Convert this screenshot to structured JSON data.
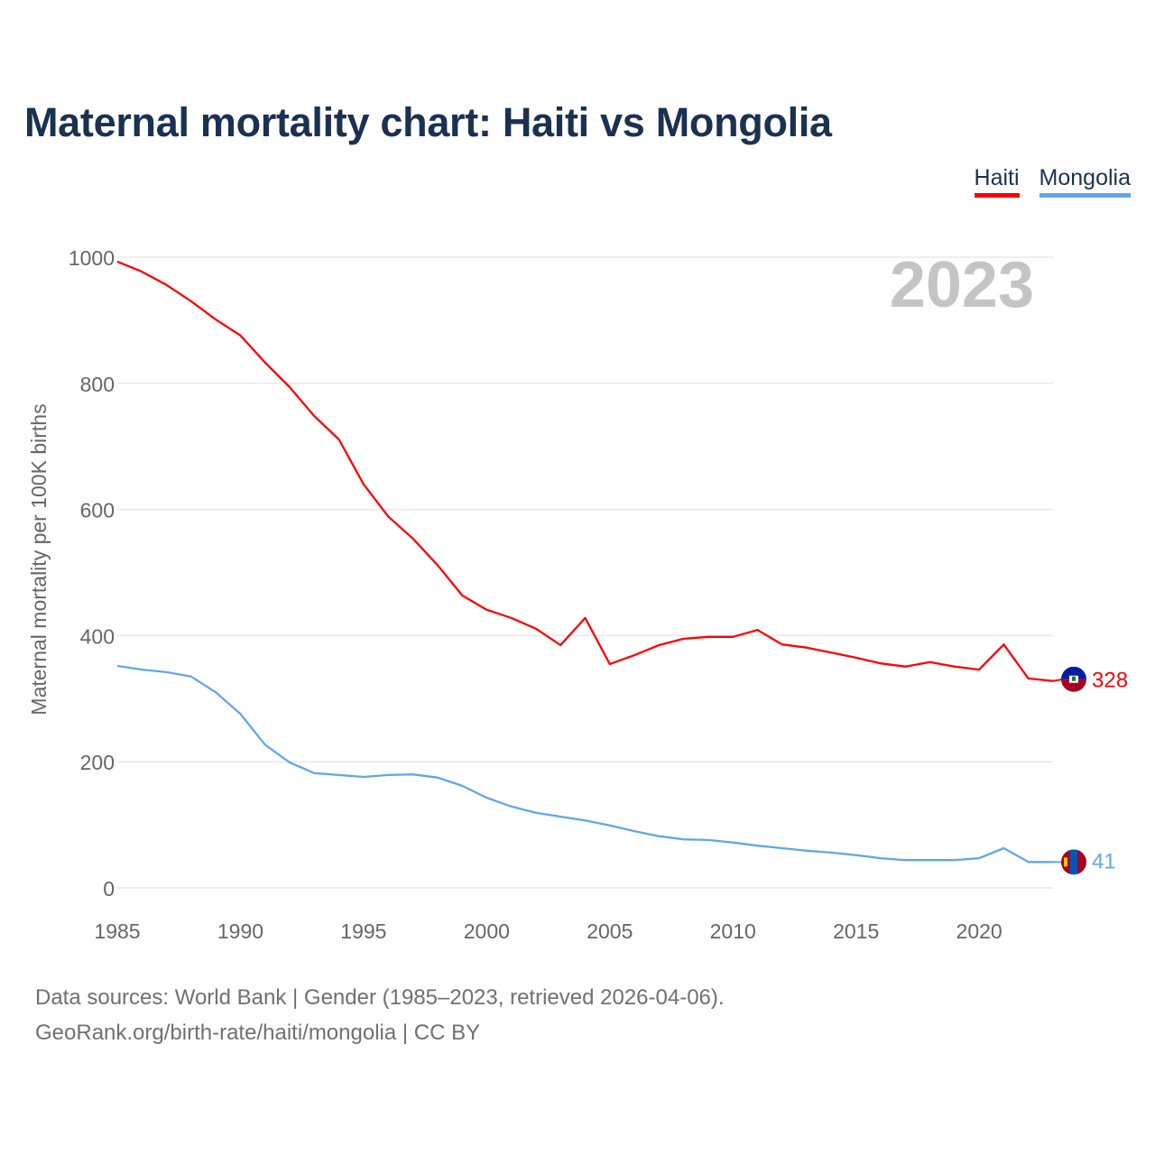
{
  "title": "Maternal mortality chart: Haiti vs Mongolia",
  "footer": {
    "line1": "Data sources: World Bank | Gender (1985–2023, retrieved 2026-04-06).",
    "line2": "GeoRank.org/birth-rate/haiti/mongolia | CC BY"
  },
  "chart_data": {
    "type": "line",
    "title": "Maternal mortality chart: Haiti vs Mongolia",
    "xlabel": "",
    "ylabel": "Maternal mortality per 100K births",
    "year_label": "2023",
    "xlim": [
      1985,
      2023
    ],
    "ylim": [
      0,
      1000
    ],
    "xticks": [
      1985,
      1990,
      1995,
      2000,
      2005,
      2010,
      2015,
      2020
    ],
    "yticks": [
      0,
      200,
      400,
      600,
      800,
      1000
    ],
    "grid": true,
    "legend": "top-right",
    "x": [
      1985,
      1986,
      1987,
      1988,
      1989,
      1990,
      1991,
      1992,
      1993,
      1994,
      1995,
      1996,
      1997,
      1998,
      1999,
      2000,
      2001,
      2002,
      2003,
      2004,
      2005,
      2006,
      2007,
      2008,
      2009,
      2010,
      2011,
      2012,
      2013,
      2014,
      2015,
      2016,
      2017,
      2018,
      2019,
      2020,
      2021,
      2022,
      2023
    ],
    "series": [
      {
        "name": "Haiti",
        "color": "#ff0000",
        "end_label": "328",
        "values": [
          993,
          977,
          956,
          930,
          901,
          876,
          833,
          794,
          748,
          711,
          640,
          589,
          554,
          512,
          464,
          441,
          428,
          411,
          385,
          428,
          355,
          369,
          385,
          395,
          398,
          398,
          409,
          386,
          381,
          373,
          365,
          356,
          351,
          358,
          351,
          346,
          386,
          332,
          328
        ]
      },
      {
        "name": "Mongolia",
        "color": "#62a6ea",
        "end_label": "41",
        "values": [
          352,
          346,
          342,
          335,
          310,
          276,
          227,
          199,
          182,
          179,
          176,
          179,
          180,
          175,
          162,
          143,
          129,
          119,
          113,
          107,
          99,
          90,
          82,
          77,
          76,
          72,
          67,
          63,
          59,
          56,
          52,
          47,
          44,
          44,
          44,
          47,
          63,
          41,
          41
        ]
      }
    ]
  }
}
